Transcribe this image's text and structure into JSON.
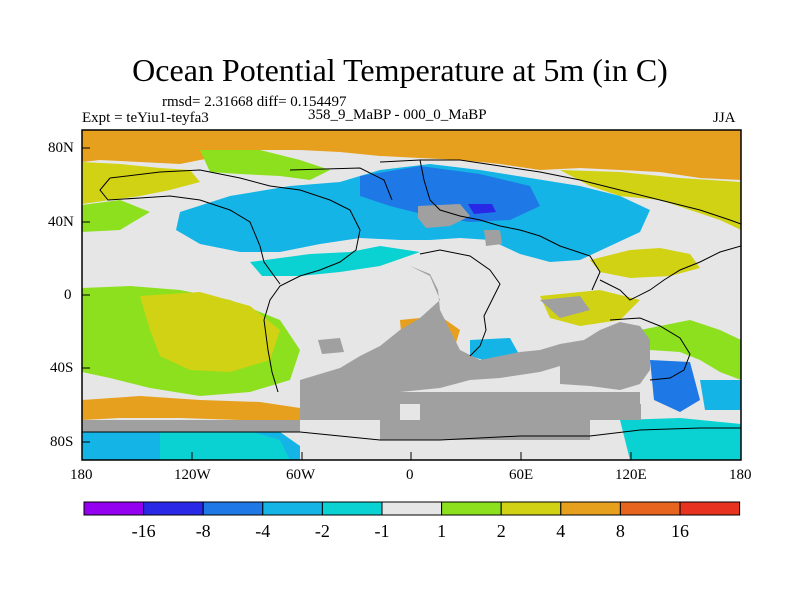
{
  "title": "Ocean Potential Temperature at 5m (in C)",
  "stats": "rmsd= 2.31668 diff= 0.154497",
  "experiment": "Expt = teYiu1-teyfa3",
  "comparison": "358_9_MaBP - 000_0_MaBP",
  "season": "JJA",
  "axes": {
    "x_ticks": [
      "180",
      "120W",
      "60W",
      "0",
      "60E",
      "120E",
      "180"
    ],
    "y_ticks": [
      "80N",
      "40N",
      "0",
      "40S",
      "80S"
    ]
  },
  "colorbar": {
    "labels": [
      "-16",
      "-8",
      "-4",
      "-2",
      "-1",
      "1",
      "2",
      "4",
      "8",
      "16"
    ],
    "colors": [
      "#9400f0",
      "#2828e6",
      "#1e78e6",
      "#14b4e6",
      "#0ad2d2",
      "#e6e6e6",
      "#8ce01e",
      "#d2d214",
      "#e6a01e",
      "#e6641e",
      "#e6321e"
    ]
  },
  "land_color": "#a0a0a0",
  "coast_color": "#000000"
}
